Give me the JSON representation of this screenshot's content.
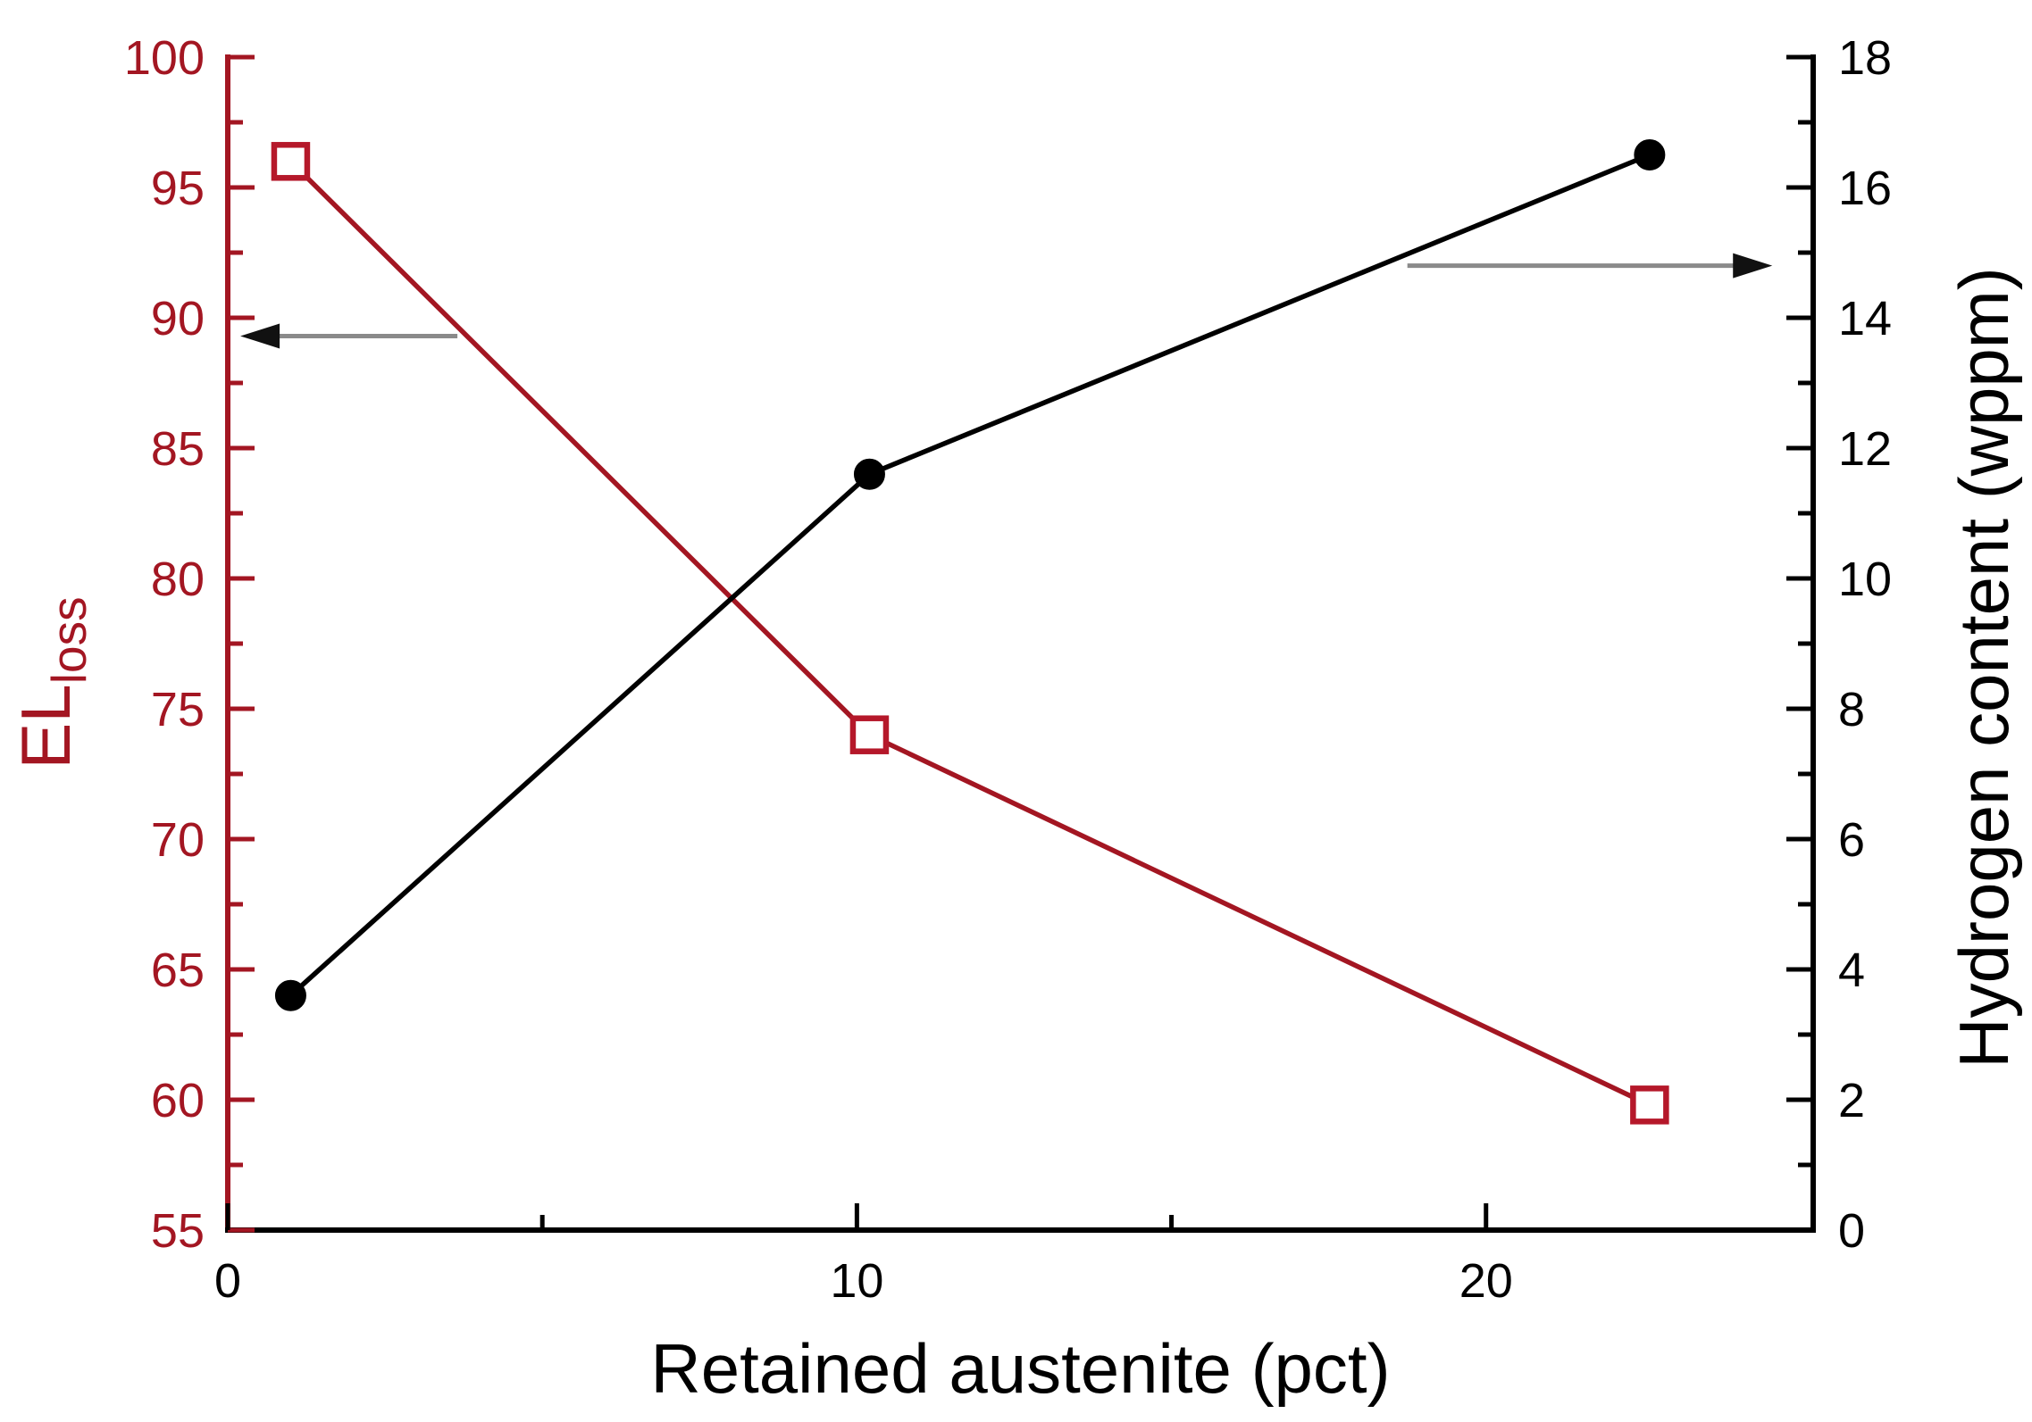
{
  "chart_data": {
    "type": "line",
    "title": "",
    "xlabel": "Retained austenite (pct)",
    "ylabel_left_main": "EL",
    "ylabel_left_sub": "loss",
    "ylabel_right": "Hydrogen content (wppm)",
    "xlim": [
      0,
      25.2
    ],
    "ylim_left": [
      55,
      100
    ],
    "ylim_right": [
      0,
      18
    ],
    "grid": false,
    "legend": "none",
    "x": [
      1,
      10.2,
      22.6
    ],
    "series": [
      {
        "name": "EL_loss",
        "axis": "left",
        "marker": "open-square",
        "line_color": "#a31622",
        "marker_edge_color": "#b5182a",
        "marker_fill": "#ffffff",
        "values": [
          96,
          74,
          59.8
        ]
      },
      {
        "name": "Hydrogen content",
        "axis": "right",
        "marker": "filled-circle",
        "line_color": "#000000",
        "marker_edge_color": "#000000",
        "marker_fill": "#000000",
        "values": [
          3.6,
          11.6,
          16.5
        ]
      }
    ],
    "left_axis": {
      "color": "#a31622",
      "major_ticks": [
        55,
        60,
        65,
        70,
        75,
        80,
        85,
        90,
        95,
        100
      ],
      "major_tick_labels": [
        "55",
        "60",
        "65",
        "70",
        "75",
        "80",
        "85",
        "90",
        "95",
        "100"
      ],
      "minor_ticks": [
        57.5,
        62.5,
        67.5,
        72.5,
        77.5,
        82.5,
        87.5,
        92.5,
        97.5
      ]
    },
    "right_axis": {
      "color": "#000000",
      "major_ticks": [
        0,
        2,
        4,
        6,
        8,
        10,
        12,
        14,
        16,
        18
      ],
      "major_tick_labels": [
        "0",
        "2",
        "4",
        "6",
        "8",
        "10",
        "12",
        "14",
        "16",
        "18"
      ],
      "minor_ticks": [
        1,
        3,
        5,
        7,
        9,
        11,
        13,
        15,
        17
      ]
    },
    "x_axis": {
      "color": "#000000",
      "major_ticks": [
        0,
        10,
        20
      ],
      "major_tick_labels": [
        "0",
        "10",
        "20"
      ],
      "minor_ticks": [
        5,
        15
      ]
    },
    "annotations": [
      {
        "name": "left-axis-arrow",
        "points": "left",
        "axis": "left",
        "y": 89.3,
        "x_from": 3.65,
        "x_to": 0.2,
        "shaft_color": "#8a8a8a",
        "head_color": "#111111"
      },
      {
        "name": "right-axis-arrow",
        "points": "right",
        "axis": "right",
        "y": 14.8,
        "x_from": 18.75,
        "x_to": 24.55,
        "shaft_color": "#8a8a8a",
        "head_color": "#111111"
      }
    ]
  }
}
